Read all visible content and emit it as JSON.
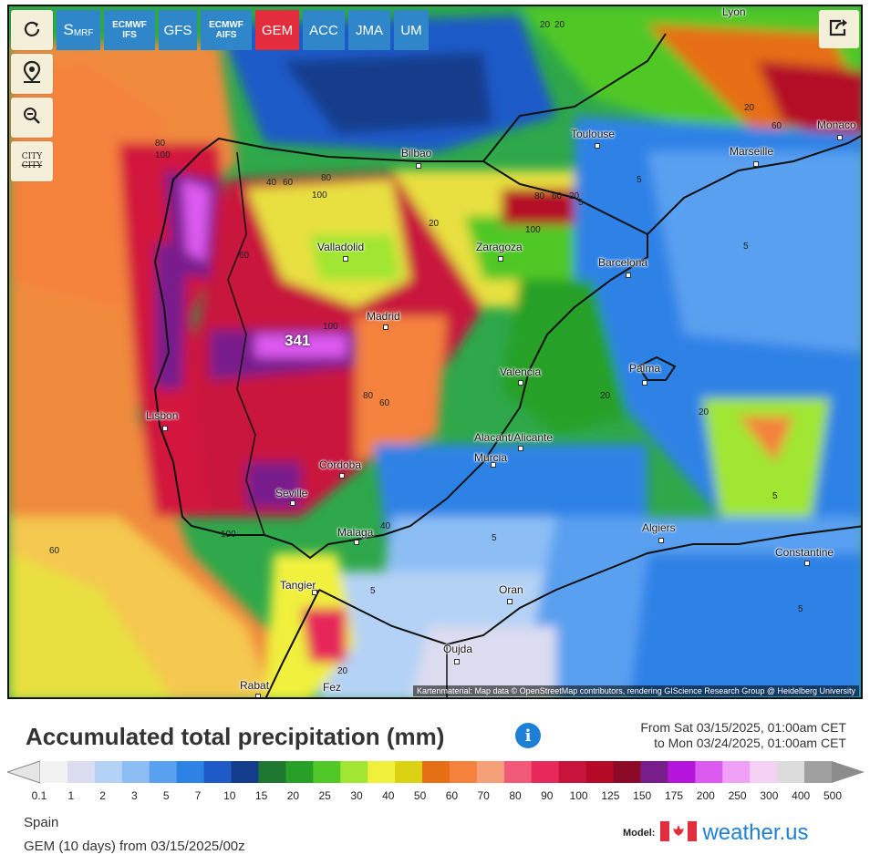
{
  "toolbar": {
    "reload_icon": "reload-icon",
    "location_icon": "map-pin-icon",
    "zoom_icon": "zoom-out-icon",
    "city_label_top": "CITY",
    "city_label_bottom": "CITY",
    "share_icon": "share-icon"
  },
  "model_tabs": [
    {
      "label": "S",
      "sub": "MRF",
      "active": false
    },
    {
      "label": "ECMWF",
      "sub": "IFS",
      "active": false
    },
    {
      "label": "GFS",
      "sub": "",
      "active": false
    },
    {
      "label": "ECMWF",
      "sub": "AIFS",
      "active": false
    },
    {
      "label": "GEM",
      "sub": "",
      "active": true
    },
    {
      "label": "ACC",
      "sub": "",
      "active": false
    },
    {
      "label": "JMA",
      "sub": "",
      "active": false
    },
    {
      "label": "UM",
      "sub": "",
      "active": false
    }
  ],
  "map": {
    "attribution": "Kartenmaterial: Map data © OpenStreetMap contributors, rendering GIScience Research Group @ Heidelberg University",
    "max_value": "341",
    "cities": [
      {
        "name": "Lyon"
      },
      {
        "name": "Toulouse"
      },
      {
        "name": "Bilbao"
      },
      {
        "name": "Marseille"
      },
      {
        "name": "Monaco"
      },
      {
        "name": "Valladolid"
      },
      {
        "name": "Zaragoza"
      },
      {
        "name": "Barcelona"
      },
      {
        "name": "Madrid"
      },
      {
        "name": "Palma"
      },
      {
        "name": "Valencia"
      },
      {
        "name": "Lisbon"
      },
      {
        "name": "Alacant/Alicante"
      },
      {
        "name": "Murcia"
      },
      {
        "name": "Córdoba"
      },
      {
        "name": "Seville"
      },
      {
        "name": "Malaga"
      },
      {
        "name": "Algiers"
      },
      {
        "name": "Constantine"
      },
      {
        "name": "Tangier"
      },
      {
        "name": "Oran"
      },
      {
        "name": "Oujda"
      },
      {
        "name": "Rabat"
      },
      {
        "name": "Fez"
      }
    ],
    "contour_labels": [
      "20",
      "80",
      "100",
      "40",
      "60",
      "80",
      "100",
      "80",
      "60",
      "20",
      "100",
      "60",
      "5",
      "20",
      "60",
      "100",
      "80",
      "60",
      "20",
      "20",
      "5",
      "100",
      "40",
      "5",
      "5",
      "60",
      "20",
      "5",
      "5",
      "20",
      "5",
      "20"
    ]
  },
  "title": "Accumulated total precipitation (mm)",
  "info_icon": "info-icon",
  "period": {
    "from": "From Sat 03/15/2025, 01:00am CET",
    "to": "to Mon 03/24/2025, 01:00am CET"
  },
  "legend": {
    "ticks": [
      "0.1",
      "1",
      "2",
      "3",
      "5",
      "7",
      "10",
      "15",
      "20",
      "25",
      "30",
      "40",
      "50",
      "60",
      "70",
      "80",
      "90",
      "100",
      "125",
      "150",
      "175",
      "200",
      "250",
      "300",
      "400",
      "500"
    ],
    "colors": [
      "#f2f2f2",
      "#dcdcf0",
      "#b4d2f5",
      "#8cbef5",
      "#5aa0f0",
      "#2d82e6",
      "#1e5ac8",
      "#143c8c",
      "#1e7832",
      "#28a028",
      "#50c828",
      "#a0e632",
      "#f0f03c",
      "#dcd214",
      "#e66e14",
      "#f5823c",
      "#f5a078",
      "#f05a78",
      "#e6285a",
      "#c8143c",
      "#b40a28",
      "#8c0a28",
      "#781e8c",
      "#b414dc",
      "#dc5af0",
      "#f0a0f5",
      "#f5d2f5",
      "#dcdcdc",
      "#a0a0a0"
    ]
  },
  "region": "Spain",
  "run": "GEM (10 days) from 03/15/2025/00z",
  "model_logo": {
    "label": "Model:",
    "flag_icon": "canada-flag-icon",
    "brand": "weather.us"
  }
}
